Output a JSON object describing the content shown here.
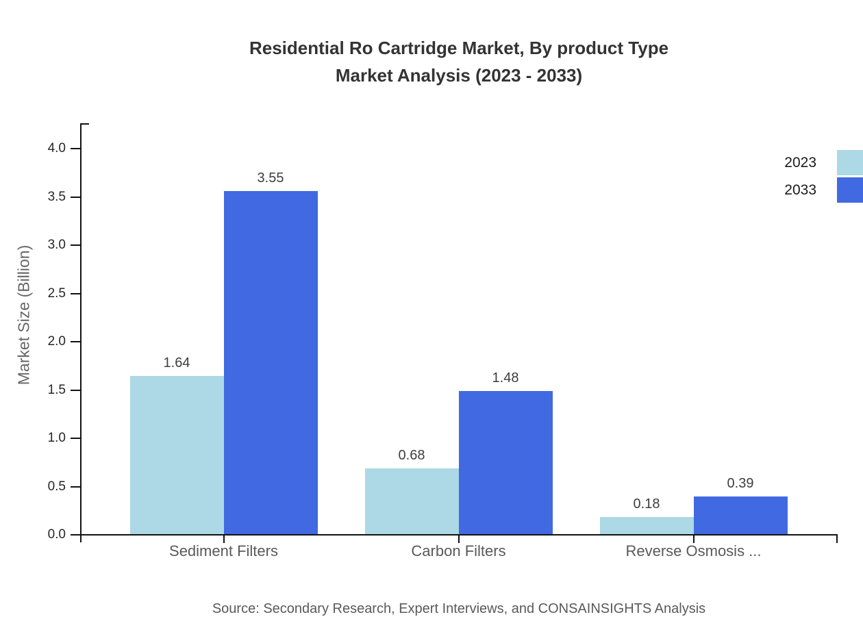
{
  "title": {
    "line1": "Residential Ro Cartridge Market, By product Type",
    "line2": "Market Analysis (2023 - 2033)"
  },
  "source": "Source: Secondary Research, Expert Interviews, and CONSAINSIGHTS Analysis",
  "y_axis": {
    "label": "Market Size (Billion)",
    "tick_labels": [
      "0.0",
      "0.5",
      "1.0",
      "1.5",
      "2.0",
      "2.5",
      "3.0",
      "3.5",
      "4.0"
    ]
  },
  "legend": {
    "position": "top-right",
    "entries": [
      {
        "label": "2023",
        "color": "#ADD8E6"
      },
      {
        "label": "2033",
        "color": "#4169E1"
      }
    ]
  },
  "chart_data": {
    "type": "bar",
    "title": "Residential Ro Cartridge Market, By product Type Market Analysis (2023 - 2033)",
    "categories": [
      "Sediment Filters",
      "Carbon Filters",
      "Reverse Osmosis ..."
    ],
    "series": [
      {
        "name": "2023",
        "color": "#ADD8E6",
        "values": [
          1.64,
          0.68,
          0.18
        ],
        "labels": [
          "1.64",
          "0.68",
          "0.18"
        ]
      },
      {
        "name": "2033",
        "color": "#4169E1",
        "values": [
          3.55,
          1.48,
          0.39
        ],
        "labels": [
          "3.55",
          "1.48",
          "0.39"
        ]
      }
    ],
    "xlabel": "",
    "ylabel": "Market Size (Billion)",
    "ylim": [
      0,
      4.0
    ],
    "ytick_step": 0.5,
    "grid": false,
    "legend_position": "top-right"
  }
}
